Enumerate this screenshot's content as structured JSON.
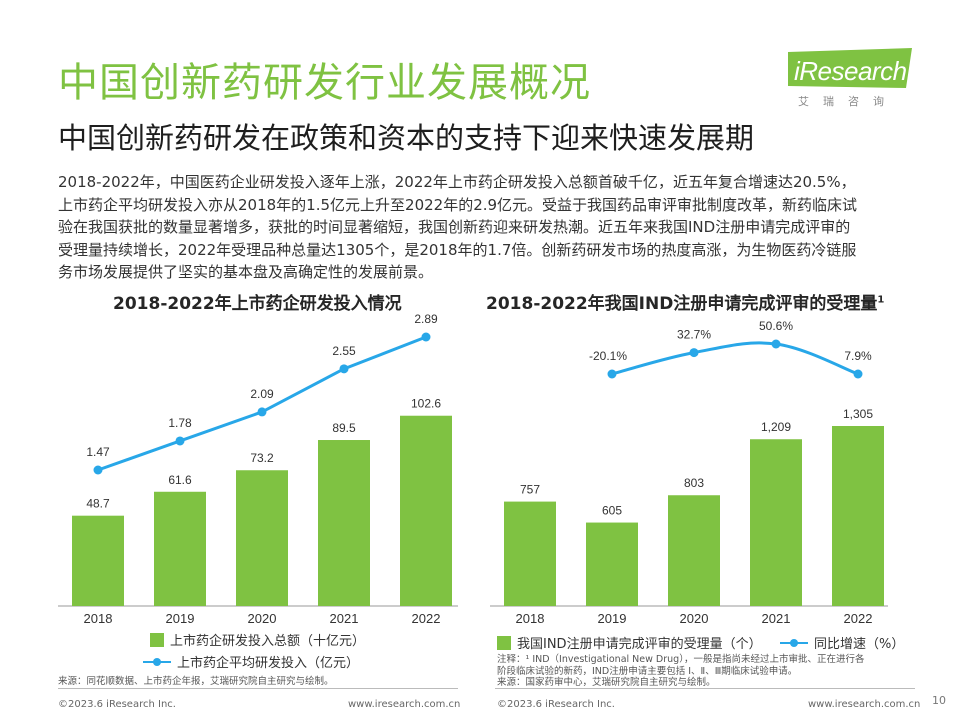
{
  "page": {
    "title": "中国创新药研发行业发展概况",
    "subtitle": "中国创新药研发在政策和资本的支持下迎来快速发展期",
    "description": [
      "2018-2022年，中国医药企业研发投入逐年上涨，2022年上市药企研发投入总额首破千亿，近五年复合增速达20.5%，",
      "上市药企平均研发投入亦从2018年的1.5亿元上升至2022年的2.9亿元。受益于我国药品审评审批制度改革，新药临床试",
      "验在我国获批的数量显著增多，获批的时间显著缩短，我国创新药迎来研发热潮。近五年来我国IND注册申请完成评审的",
      "受理量持续增长，2022年受理品种总量达1305个，是2018年的1.7倍。创新药研发市场的热度高涨，为生物医药冷链服",
      "务市场发展提供了坚实的基本盘及高确定性的发展前景。"
    ],
    "page_number": "10"
  },
  "logo": {
    "word": "iResearch",
    "cn": "艾瑞咨询"
  },
  "left": {
    "source": "来源：同花顺数据、上市药企年报，艾瑞研究院自主研究与绘制。",
    "footer_left": "©2023.6 iResearch Inc.",
    "footer_right": "www.iresearch.com.cn"
  },
  "right": {
    "note": [
      "注释：¹ IND（Investigational New Drug），一般是指尚未经过上市审批、正在进行各",
      "阶段临床试验的新药，IND注册申请主要包括 Ⅰ、Ⅱ、Ⅲ期临床试验申请。",
      "来源：国家药审中心，艾瑞研究院自主研究与绘制。"
    ],
    "footer_left": "©2023.6 iResearch Inc.",
    "footer_right": "www.iresearch.com.cn"
  },
  "colors": {
    "bar": "#7fc242",
    "line": "#28a7e8",
    "title": "#7fc242"
  },
  "chart_data": [
    {
      "type": "bar",
      "title": "2018-2022年上市药企研发投入情况",
      "categories": [
        "2018",
        "2019",
        "2020",
        "2021",
        "2022"
      ],
      "series": [
        {
          "name": "上市药企研发投入总额（十亿元）",
          "type": "bar",
          "values": [
            48.7,
            61.6,
            73.2,
            89.5,
            102.6
          ],
          "labels": [
            "48.7",
            "61.6",
            "73.2",
            "89.5",
            "102.6"
          ]
        },
        {
          "name": "上市药企平均研发投入（亿元）",
          "type": "line",
          "values": [
            1.47,
            1.78,
            2.09,
            2.55,
            2.89
          ],
          "labels": [
            "1.47",
            "1.78",
            "2.09",
            "2.55",
            "2.89"
          ]
        }
      ],
      "legend": "bottom"
    },
    {
      "type": "bar",
      "title": "2018-2022年我国IND注册申请完成评审的受理量",
      "title_sup": "1",
      "categories": [
        "2018",
        "2019",
        "2020",
        "2021",
        "2022"
      ],
      "series": [
        {
          "name": "我国IND注册申请完成评审的受理量（个）",
          "type": "bar",
          "values": [
            757,
            605,
            803,
            1209,
            1305
          ],
          "labels": [
            "757",
            "605",
            "803",
            "1,209",
            "1,305"
          ]
        },
        {
          "name": "同比增速（%）",
          "type": "line",
          "values": [
            -20.1,
            32.7,
            50.6,
            7.9
          ],
          "x": [
            "2019",
            "2020",
            "2021",
            "2022"
          ],
          "labels": [
            "-20.1%",
            "32.7%",
            "50.6%",
            "7.9%"
          ]
        }
      ],
      "legend": "bottom"
    }
  ]
}
